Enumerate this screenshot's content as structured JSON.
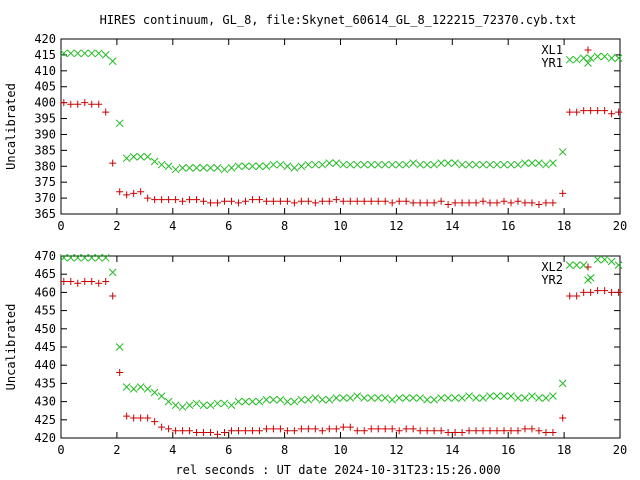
{
  "title": "HIRES continuum, GL_8, file:Skynet_60614_GL_8_122215_72370.cyb.txt",
  "xlabel": "rel seconds : UT date 2024-10-31T23:15:26.000",
  "colors": {
    "red": "#cc0000",
    "green": "#22bb22",
    "axis": "#000000"
  },
  "chart_data": [
    {
      "type": "scatter",
      "ylabel": "Uncalibrated",
      "xlim": [
        0,
        20
      ],
      "ylim": [
        365,
        420
      ],
      "xticks": [
        "0",
        "2",
        "4",
        "6",
        "8",
        "10",
        "12",
        "14",
        "16",
        "18",
        "20"
      ],
      "yticks": [
        "365",
        "370",
        "375",
        "380",
        "385",
        "390",
        "395",
        "400",
        "405",
        "410",
        "415",
        "420"
      ],
      "legend_position": "top-right",
      "series": [
        {
          "name": "XL1",
          "marker": "plus",
          "color": "#cc0000",
          "x": [
            0.1,
            0.35,
            0.6,
            0.85,
            1.1,
            1.35,
            1.6,
            1.85,
            2.1,
            2.35,
            2.6,
            2.85,
            3.1,
            3.35,
            3.6,
            3.85,
            4.1,
            4.35,
            4.6,
            4.85,
            5.1,
            5.35,
            5.6,
            5.85,
            6.1,
            6.35,
            6.6,
            6.85,
            7.1,
            7.35,
            7.6,
            7.85,
            8.1,
            8.35,
            8.6,
            8.85,
            9.1,
            9.35,
            9.6,
            9.85,
            10.1,
            10.35,
            10.6,
            10.85,
            11.1,
            11.35,
            11.6,
            11.85,
            12.1,
            12.35,
            12.6,
            12.85,
            13.1,
            13.35,
            13.6,
            13.85,
            14.1,
            14.35,
            14.6,
            14.85,
            15.1,
            15.35,
            15.6,
            15.85,
            16.1,
            16.35,
            16.6,
            16.85,
            17.1,
            17.35,
            17.6,
            17.95,
            18.2,
            18.45,
            18.7,
            18.95,
            19.2,
            19.45,
            19.7,
            19.95
          ],
          "y": [
            400,
            399.5,
            399.5,
            400,
            399.5,
            399.5,
            397,
            381,
            372,
            371,
            371.5,
            372,
            370,
            369.5,
            369.5,
            369.5,
            369.5,
            369,
            369.5,
            369.5,
            369,
            368.5,
            368.5,
            369,
            369,
            368.5,
            369,
            369.5,
            369.5,
            369,
            369,
            369,
            369,
            368.5,
            369,
            369,
            368.5,
            369,
            369,
            369.5,
            369,
            369,
            369,
            369,
            369,
            369,
            369,
            368.5,
            369,
            369,
            368.5,
            368.5,
            368.5,
            368.5,
            369,
            368,
            368.5,
            368.5,
            368.5,
            368.5,
            369,
            368.5,
            368.5,
            369,
            368.5,
            369,
            368.5,
            368.5,
            368,
            368.5,
            368.5,
            371.5,
            397,
            397,
            397.5,
            397.5,
            397.5,
            397.5,
            396.5,
            397
          ]
        },
        {
          "name": "YR1",
          "marker": "cross",
          "color": "#22bb22",
          "x": [
            0.1,
            0.35,
            0.6,
            0.85,
            1.1,
            1.35,
            1.6,
            1.85,
            2.1,
            2.35,
            2.6,
            2.85,
            3.1,
            3.35,
            3.6,
            3.85,
            4.1,
            4.35,
            4.6,
            4.85,
            5.1,
            5.35,
            5.6,
            5.85,
            6.1,
            6.35,
            6.6,
            6.85,
            7.1,
            7.35,
            7.6,
            7.85,
            8.1,
            8.35,
            8.6,
            8.85,
            9.1,
            9.35,
            9.6,
            9.85,
            10.1,
            10.35,
            10.6,
            10.85,
            11.1,
            11.35,
            11.6,
            11.85,
            12.1,
            12.35,
            12.6,
            12.85,
            13.1,
            13.35,
            13.6,
            13.85,
            14.1,
            14.35,
            14.6,
            14.85,
            15.1,
            15.35,
            15.6,
            15.85,
            16.1,
            16.35,
            16.6,
            16.85,
            17.1,
            17.35,
            17.6,
            17.95,
            18.2,
            18.45,
            18.7,
            18.95,
            19.2,
            19.45,
            19.7,
            19.95
          ],
          "y": [
            415.5,
            415.5,
            415.5,
            415.5,
            415.5,
            415.5,
            415,
            413,
            393.5,
            382.5,
            383,
            383,
            383,
            381.5,
            380.5,
            380,
            379,
            379.5,
            379.5,
            379.5,
            379.5,
            379.5,
            379.5,
            379,
            379.5,
            380,
            380,
            380,
            380,
            380,
            380.5,
            380.5,
            380,
            379.5,
            380,
            380.5,
            380.5,
            380.5,
            381,
            381,
            380.5,
            380.5,
            380.5,
            380.5,
            380.5,
            380.5,
            380.5,
            380.5,
            380.5,
            380.5,
            381,
            380.5,
            380.5,
            380.5,
            381,
            381,
            381,
            380.5,
            380.5,
            380.5,
            380.5,
            380.5,
            380.5,
            380.5,
            380.5,
            380.5,
            381,
            381,
            381,
            380.5,
            381,
            384.5,
            413.5,
            413.5,
            414,
            414,
            414.5,
            414.5,
            414,
            414
          ]
        }
      ]
    },
    {
      "type": "scatter",
      "ylabel": "Uncalibrated",
      "xlim": [
        0,
        20
      ],
      "ylim": [
        420,
        470
      ],
      "xticks": [
        "0",
        "2",
        "4",
        "6",
        "8",
        "10",
        "12",
        "14",
        "16",
        "18",
        "20"
      ],
      "yticks": [
        "420",
        "425",
        "430",
        "435",
        "440",
        "445",
        "450",
        "455",
        "460",
        "465",
        "470"
      ],
      "legend_position": "top-right",
      "series": [
        {
          "name": "XL2",
          "marker": "plus",
          "color": "#cc0000",
          "x": [
            0.1,
            0.35,
            0.6,
            0.85,
            1.1,
            1.35,
            1.6,
            1.85,
            2.1,
            2.35,
            2.6,
            2.85,
            3.1,
            3.35,
            3.6,
            3.85,
            4.1,
            4.35,
            4.6,
            4.85,
            5.1,
            5.35,
            5.6,
            5.85,
            6.1,
            6.35,
            6.6,
            6.85,
            7.1,
            7.35,
            7.6,
            7.85,
            8.1,
            8.35,
            8.6,
            8.85,
            9.1,
            9.35,
            9.6,
            9.85,
            10.1,
            10.35,
            10.6,
            10.85,
            11.1,
            11.35,
            11.6,
            11.85,
            12.1,
            12.35,
            12.6,
            12.85,
            13.1,
            13.35,
            13.6,
            13.85,
            14.1,
            14.35,
            14.6,
            14.85,
            15.1,
            15.35,
            15.6,
            15.85,
            16.1,
            16.35,
            16.6,
            16.85,
            17.1,
            17.35,
            17.6,
            17.95,
            18.2,
            18.45,
            18.7,
            18.95,
            19.2,
            19.45,
            19.7,
            19.95
          ],
          "y": [
            463,
            463,
            462.5,
            463,
            463,
            462.5,
            463,
            459,
            438,
            426,
            425.5,
            425.5,
            425.5,
            424.5,
            423,
            422.5,
            422,
            422,
            422,
            421.5,
            421.5,
            421.5,
            421,
            421.5,
            422,
            422,
            422,
            422,
            422,
            422.5,
            422.5,
            422.5,
            422,
            422,
            422.5,
            422.5,
            422.5,
            422,
            422.5,
            422.5,
            423,
            423,
            422,
            422,
            422.5,
            422.5,
            422.5,
            422.5,
            422,
            422.5,
            422.5,
            422,
            422,
            422,
            422,
            421.5,
            421.5,
            421.5,
            422,
            422,
            422,
            422,
            422,
            422,
            422,
            422,
            422.5,
            422.5,
            422,
            421.5,
            421.5,
            425.5,
            459,
            459,
            460,
            460,
            460.5,
            460.5,
            460,
            460
          ]
        },
        {
          "name": "YR2",
          "marker": "cross",
          "color": "#22bb22",
          "x": [
            0.1,
            0.35,
            0.6,
            0.85,
            1.1,
            1.35,
            1.6,
            1.85,
            2.1,
            2.35,
            2.6,
            2.85,
            3.1,
            3.35,
            3.6,
            3.85,
            4.1,
            4.35,
            4.6,
            4.85,
            5.1,
            5.35,
            5.6,
            5.85,
            6.1,
            6.35,
            6.6,
            6.85,
            7.1,
            7.35,
            7.6,
            7.85,
            8.1,
            8.35,
            8.6,
            8.85,
            9.1,
            9.35,
            9.6,
            9.85,
            10.1,
            10.35,
            10.6,
            10.85,
            11.1,
            11.35,
            11.6,
            11.85,
            12.1,
            12.35,
            12.6,
            12.85,
            13.1,
            13.35,
            13.6,
            13.85,
            14.1,
            14.35,
            14.6,
            14.85,
            15.1,
            15.35,
            15.6,
            15.85,
            16.1,
            16.35,
            16.6,
            16.85,
            17.1,
            17.35,
            17.6,
            17.95,
            18.2,
            18.45,
            18.7,
            18.95,
            19.2,
            19.45,
            19.7,
            19.95
          ],
          "y": [
            469.5,
            469.5,
            469.5,
            469.5,
            469.5,
            469.5,
            469.5,
            465.5,
            445,
            434,
            433.5,
            434,
            433.5,
            432.5,
            431.5,
            430,
            429,
            428.5,
            429,
            429.5,
            429,
            429,
            429.5,
            429.5,
            429,
            430,
            430,
            430,
            430,
            430.5,
            430.5,
            430.5,
            430,
            430,
            430.5,
            430.5,
            431,
            430.5,
            430.5,
            431,
            431,
            431,
            431.5,
            431,
            431,
            431,
            431,
            430.5,
            431,
            431,
            431,
            431,
            430.5,
            430.5,
            431,
            431,
            431,
            431,
            431.5,
            431,
            431,
            431.5,
            431.5,
            431.5,
            431.5,
            431,
            431,
            431.5,
            431,
            431,
            431.5,
            435,
            467.5,
            467.5,
            467.5,
            464,
            469,
            469,
            468.5,
            467.5
          ]
        }
      ]
    }
  ]
}
